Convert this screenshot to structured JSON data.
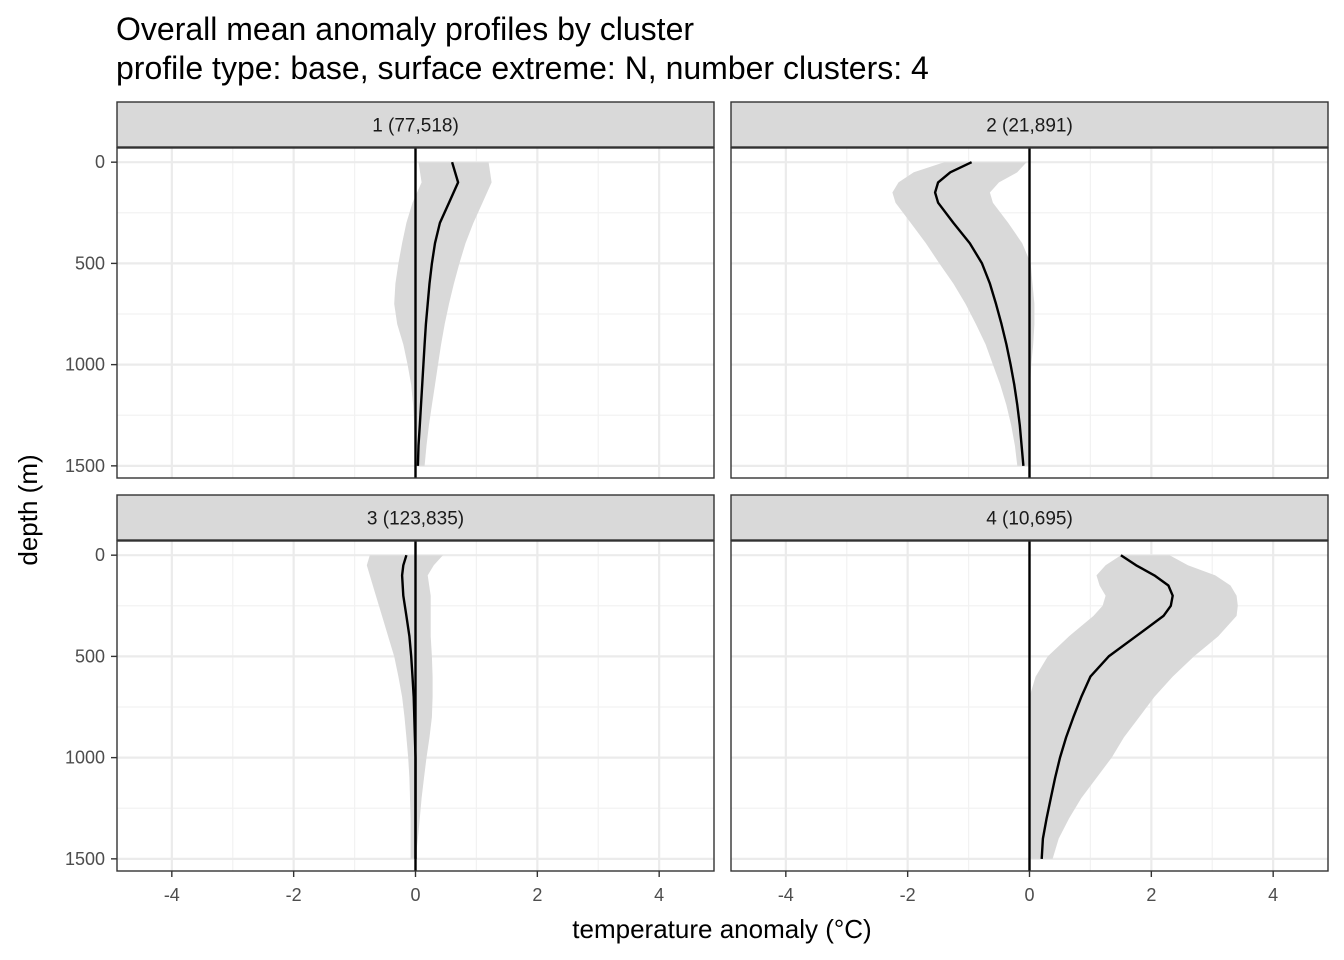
{
  "chart_data": {
    "type": "line",
    "title": "Overall mean anomaly profiles by cluster",
    "subtitle": "profile type: base, surface extreme: N, number clusters: 4",
    "xlabel": "temperature anomaly (°C)",
    "ylabel": "depth (m)",
    "xlim": [
      -4.9,
      4.9
    ],
    "ylim": [
      1560,
      -70
    ],
    "y_reversed": true,
    "x_ticks": [
      -4,
      -2,
      0,
      2,
      4
    ],
    "x_tick_labels": [
      "-4",
      "-2",
      "0",
      "2",
      "4"
    ],
    "y_ticks": [
      0,
      500,
      1000,
      1500
    ],
    "y_tick_labels": [
      "0",
      "500",
      "1000",
      "1500"
    ],
    "grid": true,
    "reference_line_x": 0,
    "line_color": "#000000",
    "ribbon_color": "#d9d9d9",
    "strip_color": "#d9d9d9",
    "panels": [
      {
        "label": "1 (77,518)",
        "depth": [
          0,
          100,
          200,
          300,
          400,
          500,
          600,
          700,
          800,
          900,
          1000,
          1100,
          1200,
          1300,
          1400,
          1500
        ],
        "mean": [
          0.6,
          0.7,
          0.55,
          0.4,
          0.32,
          0.27,
          0.23,
          0.2,
          0.17,
          0.15,
          0.13,
          0.11,
          0.09,
          0.07,
          0.05,
          0.04
        ],
        "lower": [
          0.05,
          0.1,
          -0.05,
          -0.15,
          -0.22,
          -0.28,
          -0.33,
          -0.35,
          -0.3,
          -0.2,
          -0.13,
          -0.07,
          -0.04,
          -0.02,
          -0.01,
          -0.01
        ],
        "upper": [
          1.2,
          1.25,
          1.1,
          0.95,
          0.82,
          0.72,
          0.63,
          0.55,
          0.48,
          0.42,
          0.37,
          0.32,
          0.27,
          0.22,
          0.18,
          0.15
        ]
      },
      {
        "label": "2 (21,891)",
        "depth": [
          0,
          50,
          100,
          150,
          200,
          300,
          400,
          500,
          600,
          700,
          800,
          900,
          1000,
          1100,
          1200,
          1300,
          1400,
          1500
        ],
        "mean": [
          -0.95,
          -1.3,
          -1.5,
          -1.55,
          -1.5,
          -1.25,
          -0.98,
          -0.78,
          -0.65,
          -0.55,
          -0.46,
          -0.38,
          -0.31,
          -0.25,
          -0.2,
          -0.16,
          -0.13,
          -0.1
        ],
        "lower": [
          -1.4,
          -1.9,
          -2.15,
          -2.25,
          -2.2,
          -1.95,
          -1.7,
          -1.48,
          -1.25,
          -1.05,
          -0.88,
          -0.72,
          -0.6,
          -0.48,
          -0.38,
          -0.3,
          -0.24,
          -0.2
        ],
        "upper": [
          -0.05,
          -0.2,
          -0.5,
          -0.65,
          -0.6,
          -0.35,
          -0.12,
          0.02,
          0.05,
          0.08,
          0.08,
          0.06,
          0.03,
          0.01,
          0.0,
          0.0,
          0.0,
          0.0
        ]
      },
      {
        "label": "3 (123,835)",
        "depth": [
          0,
          50,
          100,
          200,
          300,
          400,
          500,
          600,
          700,
          800,
          900,
          1000,
          1100,
          1200,
          1300,
          1400,
          1500
        ],
        "mean": [
          -0.15,
          -0.2,
          -0.22,
          -0.2,
          -0.15,
          -0.1,
          -0.07,
          -0.05,
          -0.03,
          -0.02,
          -0.01,
          0.0,
          0.0,
          0.0,
          0.0,
          0.0,
          0.0
        ],
        "lower": [
          -0.75,
          -0.8,
          -0.75,
          -0.65,
          -0.55,
          -0.45,
          -0.35,
          -0.28,
          -0.22,
          -0.18,
          -0.15,
          -0.12,
          -0.1,
          -0.09,
          -0.08,
          -0.08,
          -0.08
        ],
        "upper": [
          0.45,
          0.3,
          0.2,
          0.25,
          0.25,
          0.25,
          0.27,
          0.28,
          0.28,
          0.27,
          0.23,
          0.18,
          0.14,
          0.1,
          0.07,
          0.04,
          0.0
        ]
      },
      {
        "label": "4 (10,695)",
        "depth": [
          0,
          50,
          100,
          150,
          200,
          250,
          300,
          400,
          500,
          600,
          700,
          800,
          900,
          1000,
          1100,
          1200,
          1300,
          1400,
          1500
        ],
        "mean": [
          1.5,
          1.75,
          2.05,
          2.28,
          2.35,
          2.32,
          2.2,
          1.75,
          1.3,
          1.0,
          0.85,
          0.72,
          0.6,
          0.5,
          0.42,
          0.35,
          0.28,
          0.22,
          0.2
        ],
        "lower": [
          1.5,
          1.25,
          1.1,
          1.15,
          1.25,
          1.2,
          1.05,
          0.65,
          0.3,
          0.1,
          0.0,
          0.0,
          0.0,
          0.0,
          0.0,
          0.0,
          0.0,
          0.0,
          0.0
        ],
        "upper": [
          2.3,
          2.6,
          3.05,
          3.3,
          3.4,
          3.42,
          3.4,
          3.1,
          2.7,
          2.35,
          2.05,
          1.8,
          1.55,
          1.35,
          1.1,
          0.85,
          0.65,
          0.48,
          0.38
        ]
      }
    ]
  }
}
